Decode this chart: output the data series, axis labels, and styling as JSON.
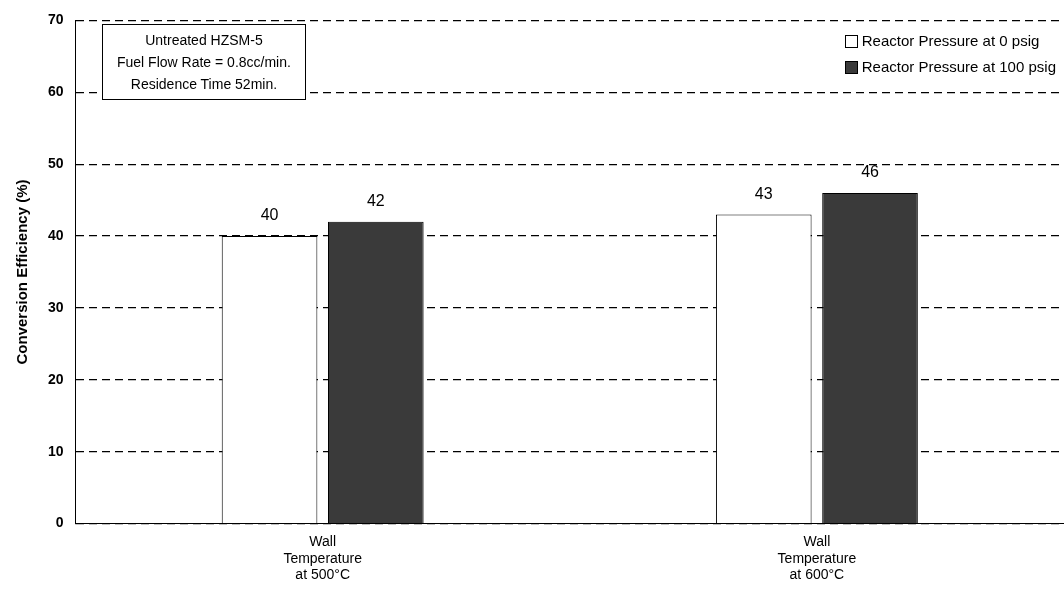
{
  "chart_data": {
    "type": "bar",
    "ylabel": "Conversion Efficiency (%)",
    "categories": [
      "Wall\nTemperature\nat 500°C",
      "Wall\nTemperature\nat 600°C"
    ],
    "series": [
      {
        "name": "Reactor Pressure at 0 psig",
        "color": "#ffffff",
        "values": [
          40,
          43
        ]
      },
      {
        "name": "Reactor Pressure at 100 psig",
        "color": "#3a3a3a",
        "values": [
          42,
          46
        ]
      }
    ],
    "ylim": [
      0,
      70
    ],
    "yticks": [
      0,
      10,
      20,
      30,
      40,
      50,
      60,
      70
    ],
    "grid": "y",
    "legend": "top right",
    "data_labels": true,
    "annotations": [
      "Untreated HZSM-5",
      "Fuel Flow  Rate = 0.8cc/min.",
      "Residence Time 52min."
    ]
  }
}
